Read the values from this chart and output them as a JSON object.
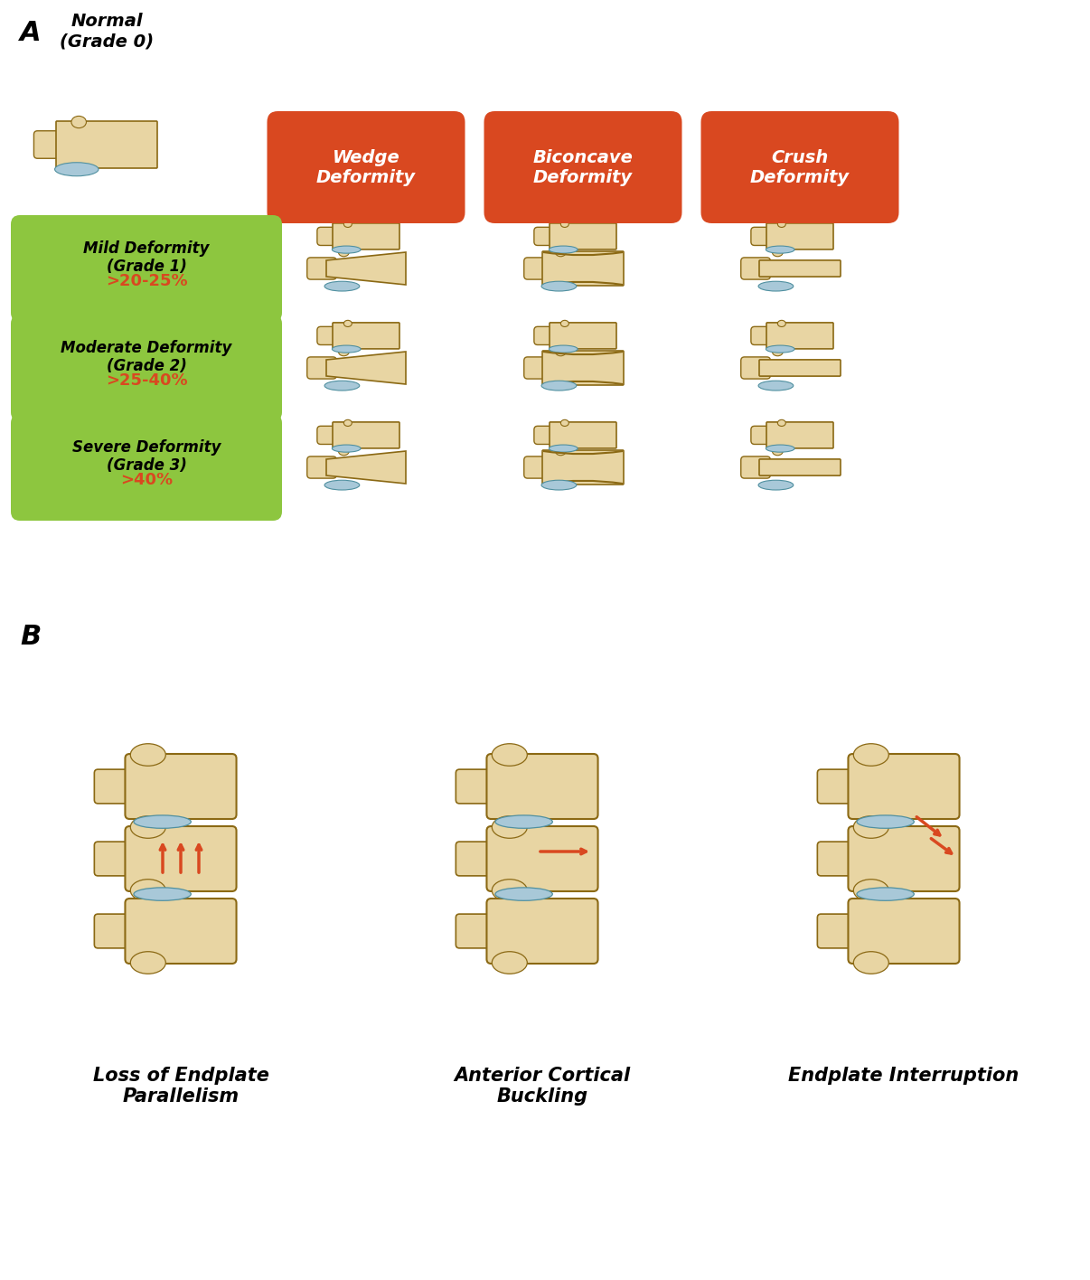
{
  "bg_color": "#ffffff",
  "panel_a_label": "A",
  "panel_b_label": "B",
  "normal_title": "Normal\n(Grade 0)",
  "red_headers": [
    "Wedge\nDeformity",
    "Biconcave\nDeformity",
    "Crush\nDeformity"
  ],
  "red_color": "#D94820",
  "green_color": "#8DC63F",
  "green_labels": [
    {
      "main": "Mild Deformity\n(Grade 1)",
      "sub": ">20-25%"
    },
    {
      "main": "Moderate Deformity\n(Grade 2)",
      "sub": ">25-40%"
    },
    {
      "main": "Severe Deformity\n(Grade 3)",
      "sub": ">40%"
    }
  ],
  "bottom_labels": [
    "Loss of Endplate\nParallelism",
    "Anterior Cortical\nBuckling",
    "Endplate Interruption"
  ],
  "vertebra_color": "#E8D5A3",
  "vertebra_outline": "#8B6914",
  "disc_color": "#A8C8D8",
  "disc_outline": "#5090A0"
}
